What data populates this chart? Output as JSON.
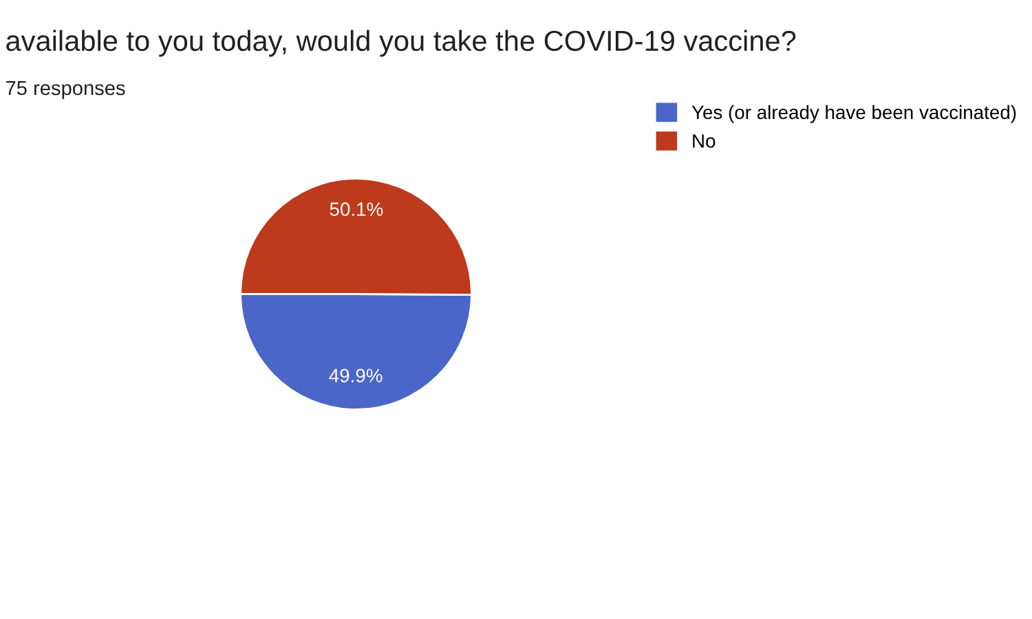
{
  "chart_data": {
    "type": "pie",
    "title": "available to you today, would you take the COVID-19 vaccine?",
    "subtitle": "75 responses",
    "categories": [
      "Yes (or already have been vaccinated)",
      "No"
    ],
    "values": [
      49.9,
      50.1
    ],
    "colors": [
      "#4a66c8",
      "#bd3a1c"
    ],
    "value_labels": [
      "49.9%",
      "50.1%"
    ],
    "legend": "top right"
  }
}
